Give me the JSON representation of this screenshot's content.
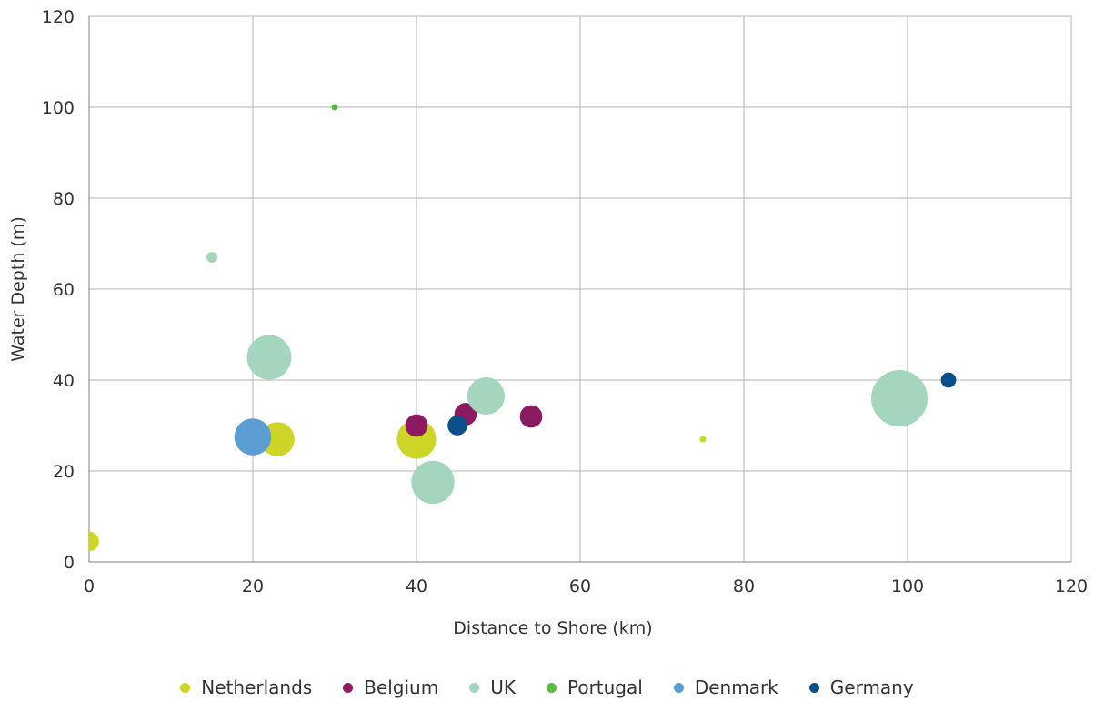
{
  "chart_data": {
    "type": "scatter",
    "subtype": "bubble",
    "title": "",
    "xlabel": "Distance to Shore (km)",
    "ylabel": "Water Depth (m)",
    "xlim": [
      0,
      120
    ],
    "ylim": [
      0,
      120
    ],
    "xticks": [
      "0",
      "20",
      "40",
      "60",
      "80",
      "100",
      "120"
    ],
    "yticks": [
      "0",
      "20",
      "40",
      "60",
      "80",
      "100",
      "120"
    ],
    "grid": true,
    "legend_position": "bottom",
    "series": [
      {
        "name": "Netherlands",
        "color": "#cdd626",
        "points": [
          {
            "x": 0,
            "y": 4.5,
            "size": 1.0
          },
          {
            "x": 23,
            "y": 27,
            "size": 3.0
          },
          {
            "x": 40,
            "y": 27,
            "size": 4.0
          },
          {
            "x": 75,
            "y": 27,
            "size": 0.1
          }
        ]
      },
      {
        "name": "Belgium",
        "color": "#8c1a60",
        "points": [
          {
            "x": 40,
            "y": 30,
            "size": 1.3
          },
          {
            "x": 46,
            "y": 32.5,
            "size": 1.3
          },
          {
            "x": 54,
            "y": 32,
            "size": 1.3
          }
        ]
      },
      {
        "name": "UK",
        "color": "#a3d6bd",
        "points": [
          {
            "x": 15,
            "y": 67,
            "size": 0.3
          },
          {
            "x": 22,
            "y": 45,
            "size": 5.1
          },
          {
            "x": 42,
            "y": 17.5,
            "size": 4.8
          },
          {
            "x": 48.5,
            "y": 36.5,
            "size": 3.6
          },
          {
            "x": 99,
            "y": 36,
            "size": 8.2
          }
        ]
      },
      {
        "name": "Portugal",
        "color": "#5bb946",
        "points": [
          {
            "x": 30,
            "y": 100,
            "size": 0.1
          }
        ]
      },
      {
        "name": "Denmark",
        "color": "#5b9ed3",
        "points": [
          {
            "x": 20,
            "y": 27.5,
            "size": 3.5
          }
        ]
      },
      {
        "name": "Germany",
        "color": "#0b4f8a",
        "points": [
          {
            "x": 45,
            "y": 30,
            "size": 1.0
          },
          {
            "x": 105,
            "y": 40,
            "size": 0.6
          }
        ]
      }
    ]
  }
}
